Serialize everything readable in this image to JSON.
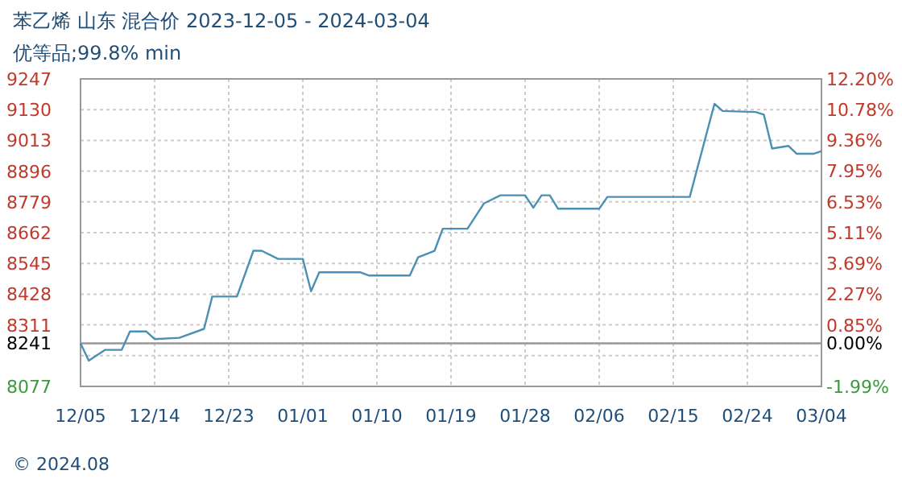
{
  "chart_data": {
    "type": "line",
    "title": "苯乙烯 山东 混合价 2023-12-05 - 2024-03-04",
    "subtitle": "优等品;99.8% min",
    "x": [
      "2023-12-05",
      "2023-12-06",
      "2023-12-08",
      "2023-12-10",
      "2023-12-11",
      "2023-12-13",
      "2023-12-14",
      "2023-12-17",
      "2023-12-20",
      "2023-12-21",
      "2023-12-24",
      "2023-12-26",
      "2023-12-27",
      "2023-12-29",
      "2024-01-01",
      "2024-01-02",
      "2024-01-03",
      "2024-01-08",
      "2024-01-09",
      "2024-01-14",
      "2024-01-15",
      "2024-01-17",
      "2024-01-18",
      "2024-01-21",
      "2024-01-23",
      "2024-01-25",
      "2024-01-28",
      "2024-01-29",
      "2024-01-30",
      "2024-01-31",
      "2024-02-01",
      "2024-02-06",
      "2024-02-07",
      "2024-02-17",
      "2024-02-20",
      "2024-02-21",
      "2024-02-25",
      "2024-02-26",
      "2024-02-27",
      "2024-02-29",
      "2024-03-01",
      "2024-03-03",
      "2024-03-04"
    ],
    "series": [
      {
        "color": "#4b8fb5",
        "values": [
          8241,
          8175,
          8216,
          8216,
          8286,
          8286,
          8257,
          8262,
          8296,
          8419,
          8419,
          8593,
          8593,
          8562,
          8562,
          8439,
          8511,
          8511,
          8499,
          8499,
          8568,
          8593,
          8677,
          8677,
          8773,
          8804,
          8804,
          8757,
          8804,
          8804,
          8753,
          8753,
          8798,
          8798,
          9152,
          9125,
          9121,
          9111,
          8982,
          8992,
          8962,
          8962,
          8972
        ]
      }
    ],
    "xlim": [
      "2023-12-05",
      "2024-03-04"
    ],
    "xticks": [
      {
        "value": "2023-12-05",
        "label": "12/05"
      },
      {
        "value": "2023-12-14",
        "label": "12/14"
      },
      {
        "value": "2023-12-23",
        "label": "12/23"
      },
      {
        "value": "2024-01-01",
        "label": "01/01"
      },
      {
        "value": "2024-01-10",
        "label": "01/10"
      },
      {
        "value": "2024-01-19",
        "label": "01/19"
      },
      {
        "value": "2024-01-28",
        "label": "01/28"
      },
      {
        "value": "2024-02-06",
        "label": "02/06"
      },
      {
        "value": "2024-02-15",
        "label": "02/15"
      },
      {
        "value": "2024-02-24",
        "label": "02/24"
      },
      {
        "value": "2024-03-04",
        "label": "03/04"
      }
    ],
    "ylim": [
      8077,
      9247
    ],
    "yticks": [
      8077,
      {
        "value": 8194,
        "label": null
      },
      8241,
      8311,
      8428,
      8545,
      8662,
      8779,
      8896,
      9013,
      9130,
      9247
    ],
    "y2lim": [
      -1.99,
      12.2
    ],
    "y2ticks": [
      {
        "value": -1.99,
        "label": "-1.99%"
      },
      {
        "value": 0,
        "label": "0.00%"
      },
      {
        "value": 0.85,
        "label": "0.85%"
      },
      {
        "value": 2.27,
        "label": "2.27%"
      },
      {
        "value": 3.69,
        "label": "3.69%"
      },
      {
        "value": 5.11,
        "label": "5.11%"
      },
      {
        "value": 6.53,
        "label": "6.53%"
      },
      {
        "value": 7.95,
        "label": "7.95%"
      },
      {
        "value": 9.36,
        "label": "9.36%"
      },
      {
        "value": 10.78,
        "label": "10.78%"
      },
      {
        "value": 12.2,
        "label": "12.20%"
      }
    ],
    "ref_lines": [
      {
        "axis": "y",
        "value": 8241,
        "color": "#999999"
      }
    ],
    "grid": true,
    "annotations": [
      "© 2024.08"
    ]
  }
}
